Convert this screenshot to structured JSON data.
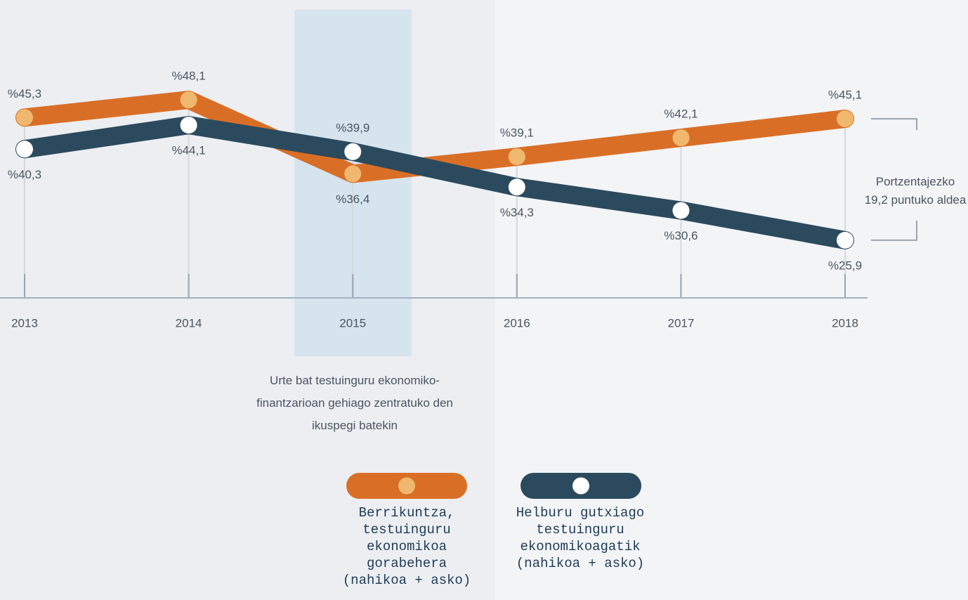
{
  "chart_data": {
    "type": "line",
    "categories": [
      "2013",
      "2014",
      "2015",
      "2016",
      "2017",
      "2018"
    ],
    "series": [
      {
        "name": "Berrikuntza, testuinguru ekonomikoa gorabehera (nahikoa + asko)",
        "color": "#d96f27",
        "point_color": "#f0b86e",
        "values": [
          45.3,
          48.1,
          36.4,
          39.1,
          42.1,
          45.1
        ],
        "value_labels": [
          "%45,3",
          "%48,1",
          "%36,4",
          "%39,1",
          "%42,1",
          "%45,1"
        ]
      },
      {
        "name": "Helburu gutxiago testuinguru ekonomikoagatik (nahikoa + asko)",
        "color": "#2b4a5e",
        "point_color": "#ffffff",
        "values": [
          40.3,
          44.1,
          39.9,
          34.3,
          30.6,
          25.9
        ],
        "value_labels": [
          "%40,3",
          "%44,1",
          "%39,9",
          "%34,3",
          "%30,6",
          "%25,9"
        ]
      }
    ],
    "ylim": [
      20,
      50
    ],
    "highlight_index": 2,
    "highlight_note": "Urte bat testuinguru ekonomiko-finantzarioan gehiago zentratuko den ikuspegi batekin",
    "gap_note": "Portzentajezko 19,2 puntuko aldea"
  }
}
